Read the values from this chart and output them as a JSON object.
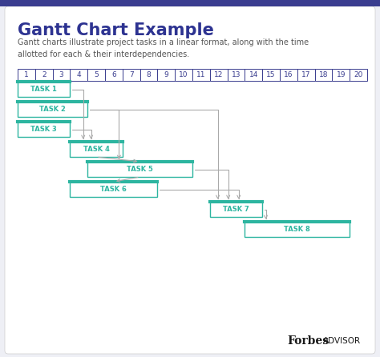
{
  "title": "Gantt Chart Example",
  "subtitle": "Gantt charts illustrate project tasks in a linear format, along with the time\nallotted for each & their interdependencies.",
  "title_color": "#2d3391",
  "subtitle_color": "#555555",
  "background_color": "#eeeff5",
  "chart_bg_color": "#ffffff",
  "top_bar_color": "#3a3d8f",
  "task_bar_fill": "#ffffff",
  "task_bar_edge": "#2db5a0",
  "task_label_color": "#2db5a0",
  "arrow_color": "#aaaaaa",
  "timeline_color": "#3a3d8f",
  "tasks": [
    {
      "label": "TASK 1",
      "start": 1,
      "end": 4
    },
    {
      "label": "TASK 2",
      "start": 1,
      "end": 5
    },
    {
      "label": "TASK 3",
      "start": 1,
      "end": 4
    },
    {
      "label": "TASK 4",
      "start": 4,
      "end": 7
    },
    {
      "label": "TASK 5",
      "start": 5,
      "end": 11
    },
    {
      "label": "TASK 6",
      "start": 4,
      "end": 9
    },
    {
      "label": "TASK 7",
      "start": 12,
      "end": 15
    },
    {
      "label": "TASK 8",
      "start": 14,
      "end": 20
    }
  ]
}
